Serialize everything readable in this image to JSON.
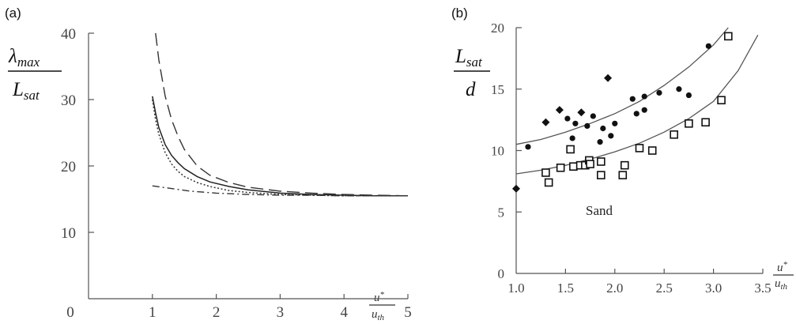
{
  "chart_data": [
    {
      "panel": "(a)",
      "type": "line",
      "ylabel": {
        "num_base": "λ",
        "num_sub": "max",
        "den_base": "L",
        "den_sub": "sat"
      },
      "xlabel": {
        "num_base": "u",
        "num_sup": "*",
        "den_base": "u",
        "den_sub": "th"
      },
      "xlim": [
        0,
        5
      ],
      "ylim": [
        0,
        40
      ],
      "xticks": [
        "0",
        "1",
        "2",
        "3",
        "4",
        "5"
      ],
      "yticks": [
        "10",
        "20",
        "30",
        "40"
      ],
      "grid": false,
      "series": [
        {
          "style": "solid",
          "x": [
            1.0,
            1.05,
            1.1,
            1.2,
            1.3,
            1.4,
            1.5,
            1.7,
            1.9,
            2.2,
            2.5,
            3.0,
            3.5,
            4.0,
            4.5,
            5.0
          ],
          "y": [
            30.5,
            28.0,
            25.8,
            23.2,
            21.6,
            20.5,
            19.6,
            18.4,
            17.6,
            16.9,
            16.4,
            15.9,
            15.7,
            15.6,
            15.5,
            15.5
          ]
        },
        {
          "style": "dashed",
          "x": [
            1.05,
            1.1,
            1.2,
            1.3,
            1.4,
            1.5,
            1.7,
            1.9,
            2.2,
            2.5,
            3.0,
            3.5,
            4.0,
            4.5,
            5.0
          ],
          "y": [
            40.0,
            36.0,
            30.5,
            27.0,
            24.5,
            22.5,
            20.0,
            18.6,
            17.5,
            16.8,
            16.2,
            15.9,
            15.7,
            15.6,
            15.5
          ]
        },
        {
          "style": "dotted",
          "x": [
            1.0,
            1.05,
            1.1,
            1.2,
            1.3,
            1.4,
            1.5,
            1.7,
            1.9,
            2.2,
            2.5,
            3.0,
            3.5,
            4.0,
            4.5,
            5.0
          ],
          "y": [
            30.0,
            27.0,
            24.8,
            22.0,
            20.3,
            19.2,
            18.4,
            17.5,
            16.9,
            16.3,
            16.0,
            15.7,
            15.6,
            15.5,
            15.5,
            15.5
          ]
        },
        {
          "style": "dashdot",
          "x": [
            1.0,
            1.3,
            1.6,
            2.0,
            2.5,
            3.0,
            3.5,
            4.0,
            4.5,
            5.0
          ],
          "y": [
            17.0,
            16.6,
            16.2,
            15.9,
            15.7,
            15.6,
            15.6,
            15.5,
            15.5,
            15.5
          ]
        }
      ]
    },
    {
      "panel": "(b)",
      "type": "scatter",
      "ylabel": {
        "num_base": "L",
        "num_sub": "sat",
        "den_base": "d"
      },
      "xlabel": {
        "num_base": "u",
        "num_sup": "*",
        "den_base": "u",
        "den_sub": "th"
      },
      "xlim": [
        1.0,
        3.5
      ],
      "ylim": [
        0,
        20
      ],
      "xticks": [
        "1.0",
        "1.5",
        "2.0",
        "2.5",
        "3.0",
        "3.5"
      ],
      "yticks": [
        "0",
        "5",
        "10",
        "15",
        "20"
      ],
      "grid": false,
      "annotation": "Sand",
      "series": [
        {
          "marker": "filled-circle",
          "x": [
            1.12,
            1.52,
            1.57,
            1.6,
            1.72,
            1.78,
            1.85,
            1.88,
            1.96,
            2.0,
            2.18,
            2.22,
            2.3,
            2.3,
            2.45,
            2.65,
            2.75,
            2.95
          ],
          "y": [
            10.3,
            12.6,
            11.0,
            12.2,
            12.0,
            12.8,
            10.7,
            11.8,
            11.2,
            12.2,
            14.2,
            13.0,
            14.4,
            13.3,
            14.7,
            15.0,
            14.5,
            18.5
          ]
        },
        {
          "marker": "filled-diamond",
          "x": [
            1.0,
            1.3,
            1.44,
            1.66,
            1.93
          ],
          "y": [
            6.9,
            12.3,
            13.3,
            13.1,
            15.9
          ]
        },
        {
          "marker": "open-square",
          "x": [
            1.3,
            1.33,
            1.45,
            1.55,
            1.58,
            1.65,
            1.7,
            1.74,
            1.75,
            1.86,
            1.86,
            2.08,
            2.1,
            2.25,
            2.38,
            2.6,
            2.75,
            2.92,
            3.08,
            3.15
          ],
          "y": [
            8.2,
            7.4,
            8.6,
            10.1,
            8.7,
            8.8,
            8.8,
            9.2,
            8.9,
            8.0,
            9.1,
            8.0,
            8.8,
            10.2,
            10.0,
            11.3,
            12.2,
            12.3,
            14.1,
            19.3
          ]
        }
      ],
      "fit_lines": [
        {
          "x": [
            1.0,
            1.25,
            1.5,
            1.75,
            2.0,
            2.25,
            2.5,
            2.75,
            3.0,
            3.15
          ],
          "y": [
            10.5,
            10.9,
            11.5,
            12.2,
            13.0,
            14.0,
            15.3,
            16.8,
            18.6,
            20.0
          ]
        },
        {
          "x": [
            1.0,
            1.25,
            1.5,
            1.75,
            2.0,
            2.25,
            2.5,
            2.75,
            3.0,
            3.25,
            3.45
          ],
          "y": [
            8.1,
            8.4,
            8.8,
            9.3,
            9.9,
            10.6,
            11.5,
            12.6,
            14.0,
            16.5,
            19.4
          ]
        }
      ]
    }
  ]
}
